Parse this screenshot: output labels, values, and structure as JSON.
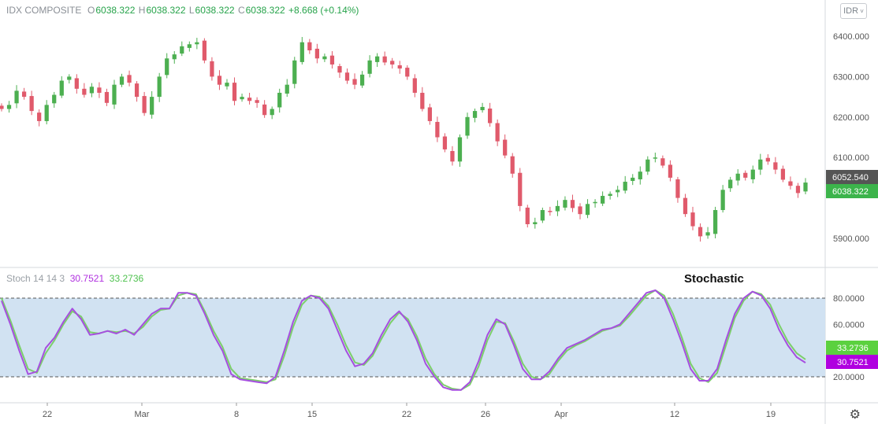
{
  "header": {
    "symbol": "IDX COMPOSITE",
    "open_label": "O",
    "open": "6038.322",
    "high_label": "H",
    "high": "6038.322",
    "low_label": "L",
    "low": "6038.322",
    "close_label": "C",
    "close": "6038.322",
    "change": "+8.668 (+0.14%)",
    "currency": "IDR"
  },
  "stoch_legend": {
    "name": "Stoch 14 14 3",
    "k": "30.7521",
    "d": "33.2736"
  },
  "annotation": "Stochastic",
  "colors": {
    "up": "#26a69a",
    "up_body": "#4caf50",
    "down": "#e05a6b",
    "k_line": "#a64fe0",
    "d_line": "#7ccf6b",
    "band_fill": "#cfe0f1"
  },
  "chart_data": [
    {
      "type": "candlestick",
      "x_tick_labels": [
        "22",
        "Mar",
        "8",
        "15",
        "22",
        "26",
        "Apr",
        "12",
        "19"
      ],
      "y_ticks": [
        "6400.000",
        "6300.000",
        "6200.000",
        "6100.000",
        "5900.000"
      ],
      "ylim": [
        5830,
        6470
      ],
      "price_badges": [
        {
          "value": "6052.540",
          "color": "#555555"
        },
        {
          "value": "6038.322",
          "color": "#3cb44b"
        }
      ],
      "close_path": [
        6220,
        6230,
        6265,
        6250,
        6215,
        6190,
        6230,
        6255,
        6290,
        6300,
        6270,
        6255,
        6275,
        6260,
        6235,
        6280,
        6300,
        6285,
        6250,
        6210,
        6250,
        6300,
        6345,
        6355,
        6375,
        6380,
        6385,
        6340,
        6300,
        6280,
        6285,
        6240,
        6250,
        6240,
        6235,
        6205,
        6220,
        6260,
        6280,
        6340,
        6385,
        6365,
        6345,
        6350,
        6330,
        6310,
        6290,
        6280,
        6305,
        6340,
        6350,
        6335,
        6330,
        6320,
        6300,
        6260,
        6220,
        6190,
        6150,
        6120,
        6090,
        6150,
        6200,
        6215,
        6225,
        6185,
        6140,
        6105,
        6060,
        5980,
        5935,
        5940,
        5970,
        5965,
        5980,
        5995,
        5975,
        5960,
        5985,
        5990,
        6005,
        6010,
        6020,
        6040,
        6050,
        6065,
        6095,
        6100,
        6080,
        6050,
        6000,
        5960,
        5930,
        5905,
        5915,
        5970,
        6020,
        6045,
        6060,
        6050,
        6070,
        6095,
        6090,
        6070,
        6045,
        6030,
        6012,
        6038
      ]
    },
    {
      "type": "line",
      "title": "Stochastic",
      "y_ticks": [
        "80.0000",
        "60.0000",
        "20.0000"
      ],
      "ylim": [
        0,
        100
      ],
      "band": [
        20,
        80
      ],
      "series": [
        {
          "name": "%K",
          "values": [
            78,
            60,
            40,
            22,
            24,
            42,
            50,
            62,
            72,
            64,
            52,
            53,
            55,
            53,
            56,
            52,
            60,
            68,
            72,
            72,
            84,
            84,
            82,
            68,
            52,
            40,
            22,
            18,
            17,
            16,
            15,
            20,
            40,
            62,
            78,
            82,
            80,
            72,
            56,
            40,
            28,
            30,
            38,
            52,
            64,
            70,
            62,
            48,
            30,
            20,
            12,
            10,
            10,
            16,
            32,
            52,
            64,
            60,
            44,
            26,
            18,
            18,
            24,
            34,
            42,
            45,
            48,
            52,
            56,
            57,
            60,
            68,
            76,
            84,
            86,
            80,
            64,
            46,
            26,
            17,
            17,
            26,
            48,
            68,
            80,
            85,
            82,
            72,
            56,
            44,
            35,
            30.75
          ]
        },
        {
          "name": "%D",
          "values": [
            80,
            63,
            44,
            26,
            23,
            38,
            48,
            60,
            70,
            66,
            54,
            53,
            55,
            54,
            55,
            53,
            58,
            66,
            71,
            72,
            82,
            84,
            83,
            70,
            55,
            43,
            26,
            19,
            18,
            17,
            16,
            18,
            36,
            58,
            75,
            82,
            81,
            74,
            60,
            44,
            31,
            29,
            36,
            49,
            61,
            69,
            64,
            51,
            34,
            22,
            14,
            11,
            10,
            14,
            28,
            48,
            62,
            61,
            47,
            30,
            20,
            18,
            22,
            32,
            40,
            44,
            47,
            51,
            55,
            57,
            59,
            66,
            74,
            82,
            86,
            82,
            68,
            50,
            30,
            19,
            16,
            23,
            44,
            65,
            78,
            85,
            83,
            75,
            60,
            47,
            38,
            33.27
          ]
        }
      ]
    }
  ]
}
